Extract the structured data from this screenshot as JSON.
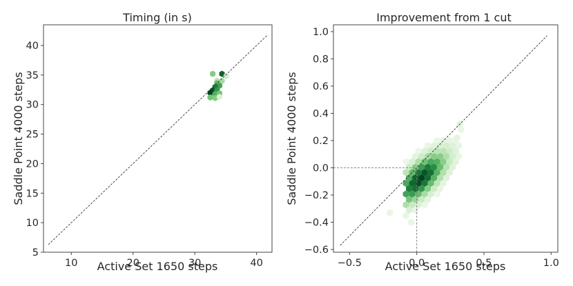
{
  "chart_data": [
    {
      "type": "hexbin",
      "title": "Timing (in s)",
      "xlabel": "Active Set 1650 steps",
      "ylabel": "Saddle Point 4000 steps",
      "xlim": [
        5.5,
        42.5
      ],
      "ylim": [
        5,
        43.5
      ],
      "xticks": [
        10,
        20,
        30,
        40
      ],
      "yticks": [
        5,
        10,
        15,
        20,
        25,
        30,
        35,
        40
      ],
      "diagonal": [
        [
          6.3,
          6.3
        ],
        [
          41.7,
          41.7
        ]
      ],
      "cmap": [
        "#f7fcf5",
        "#c7e9c0",
        "#74c476",
        "#238b45",
        "#00441b"
      ],
      "hexbins": [
        {
          "x": 32.9,
          "y": 35.2,
          "d": 0.45
        },
        {
          "x": 34.4,
          "y": 35.2,
          "d": 0.9
        },
        {
          "x": 35.1,
          "y": 34.8,
          "d": 0.2
        },
        {
          "x": 33.6,
          "y": 34.0,
          "d": 0.3
        },
        {
          "x": 34.4,
          "y": 34.0,
          "d": 0.35
        },
        {
          "x": 33.6,
          "y": 33.6,
          "d": 0.55
        },
        {
          "x": 34.0,
          "y": 33.2,
          "d": 0.65
        },
        {
          "x": 33.3,
          "y": 33.0,
          "d": 0.8
        },
        {
          "x": 32.9,
          "y": 32.4,
          "d": 0.95
        },
        {
          "x": 33.6,
          "y": 32.4,
          "d": 0.7
        },
        {
          "x": 32.5,
          "y": 32.0,
          "d": 1.0
        },
        {
          "x": 33.3,
          "y": 31.8,
          "d": 0.6
        },
        {
          "x": 34.0,
          "y": 31.9,
          "d": 0.5
        },
        {
          "x": 32.5,
          "y": 31.2,
          "d": 0.5
        },
        {
          "x": 33.3,
          "y": 31.1,
          "d": 0.45
        },
        {
          "x": 34.0,
          "y": 31.3,
          "d": 0.15
        }
      ]
    },
    {
      "type": "hexbin",
      "title": "Improvement from 1 cut",
      "xlabel": "Active Set 1650 steps",
      "ylabel": "Saddle Point 4000 steps",
      "xlim": [
        -0.62,
        1.05
      ],
      "ylim": [
        -0.62,
        1.05
      ],
      "xticks": [
        -0.5,
        0.0,
        0.5,
        1.0
      ],
      "xtick_labels": [
        "−0.5",
        "0.0",
        "0.5",
        "1.0"
      ],
      "yticks": [
        -0.6,
        -0.4,
        -0.2,
        0.0,
        0.2,
        0.4,
        0.6,
        0.8,
        1.0
      ],
      "ytick_labels": [
        "−0.6",
        "−0.4",
        "−0.2",
        "0.0",
        "0.2",
        "0.4",
        "0.6",
        "0.8",
        "1.0"
      ],
      "diagonal": [
        [
          -0.57,
          -0.57
        ],
        [
          0.97,
          0.97
        ]
      ],
      "reference_lines": {
        "x": 0.0,
        "y": 0.0
      },
      "cmap": [
        "#f7fcf5",
        "#c7e9c0",
        "#74c476",
        "#238b45",
        "#00441b"
      ],
      "density_model": {
        "center": [
          0.03,
          -0.08
        ],
        "sigma_along": 0.17,
        "sigma_across": 0.07,
        "tilt_deg": 45,
        "extent_x": [
          -0.08,
          0.32
        ],
        "extent_y": [
          -0.36,
          0.36
        ],
        "min_density": 0.06
      },
      "outliers": [
        {
          "x": -0.2,
          "y": -0.33,
          "d": 0.08
        },
        {
          "x": 0.32,
          "y": 0.32,
          "d": 0.12
        },
        {
          "x": 0.3,
          "y": 0.22,
          "d": 0.1
        },
        {
          "x": -0.04,
          "y": -0.4,
          "d": 0.08
        },
        {
          "x": 0.33,
          "y": 0.28,
          "d": 0.08
        }
      ]
    }
  ]
}
